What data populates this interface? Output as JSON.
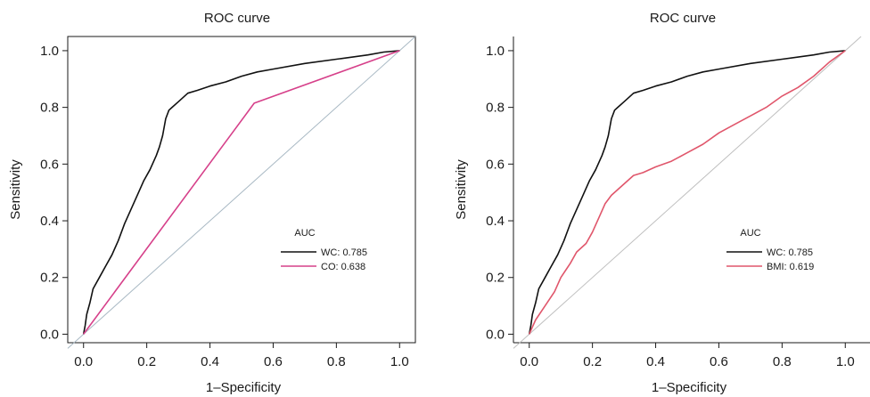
{
  "chart_data": [
    {
      "type": "line",
      "title": "ROC curve",
      "xlabel": "1–Specificity",
      "ylabel": "Sensitivity",
      "xlim": [
        -0.05,
        1.05
      ],
      "ylim": [
        -0.03,
        1.05
      ],
      "xticks": [
        "0.0",
        "0.2",
        "0.4",
        "0.6",
        "0.8",
        "1.0"
      ],
      "yticks": [
        "0.0",
        "0.2",
        "0.4",
        "0.6",
        "0.8",
        "1.0"
      ],
      "grid": false,
      "legend_title": "AUC",
      "legend_position": "bottom-right",
      "reference_line": {
        "x": [
          0,
          1
        ],
        "y": [
          0,
          1
        ],
        "color": "#a9b9c4"
      },
      "series": [
        {
          "name": "WC: 0.785",
          "color": "#111111",
          "x": [
            0,
            0.005,
            0.01,
            0.02,
            0.03,
            0.05,
            0.07,
            0.09,
            0.11,
            0.13,
            0.15,
            0.17,
            0.19,
            0.21,
            0.23,
            0.24,
            0.25,
            0.26,
            0.27,
            0.28,
            0.3,
            0.33,
            0.36,
            0.4,
            0.45,
            0.5,
            0.55,
            0.6,
            0.7,
            0.8,
            0.9,
            0.95,
            1.0
          ],
          "y": [
            0,
            0.03,
            0.07,
            0.11,
            0.16,
            0.2,
            0.24,
            0.28,
            0.33,
            0.39,
            0.44,
            0.49,
            0.54,
            0.58,
            0.63,
            0.66,
            0.7,
            0.76,
            0.79,
            0.8,
            0.82,
            0.85,
            0.86,
            0.875,
            0.89,
            0.91,
            0.925,
            0.935,
            0.955,
            0.97,
            0.985,
            0.995,
            1.0
          ]
        },
        {
          "name": "CO: 0.638",
          "color": "#d6408a",
          "x": [
            0,
            0.54,
            1.0
          ],
          "y": [
            0,
            0.815,
            1.0
          ]
        }
      ]
    },
    {
      "type": "line",
      "title": "ROC curve",
      "xlabel": "1–Specificity",
      "ylabel": "Sensitivity",
      "xlim": [
        -0.05,
        1.05
      ],
      "ylim": [
        -0.03,
        1.05
      ],
      "xticks": [
        "0.0",
        "0.2",
        "0.4",
        "0.6",
        "0.8",
        "1.0"
      ],
      "yticks": [
        "0.0",
        "0.2",
        "0.4",
        "0.6",
        "0.8",
        "1.0"
      ],
      "grid": false,
      "legend_title": "AUC",
      "legend_position": "bottom-right",
      "reference_line": {
        "x": [
          0,
          1
        ],
        "y": [
          0,
          1
        ],
        "color": "#bfbfbf"
      },
      "series": [
        {
          "name": "WC: 0.785",
          "color": "#111111",
          "x": [
            0,
            0.005,
            0.01,
            0.02,
            0.03,
            0.05,
            0.07,
            0.09,
            0.11,
            0.13,
            0.15,
            0.17,
            0.19,
            0.21,
            0.23,
            0.24,
            0.25,
            0.26,
            0.27,
            0.28,
            0.3,
            0.33,
            0.36,
            0.4,
            0.45,
            0.5,
            0.55,
            0.6,
            0.7,
            0.8,
            0.9,
            0.95,
            1.0
          ],
          "y": [
            0,
            0.03,
            0.07,
            0.11,
            0.16,
            0.2,
            0.24,
            0.28,
            0.33,
            0.39,
            0.44,
            0.49,
            0.54,
            0.58,
            0.63,
            0.66,
            0.7,
            0.76,
            0.79,
            0.8,
            0.82,
            0.85,
            0.86,
            0.875,
            0.89,
            0.91,
            0.925,
            0.935,
            0.955,
            0.97,
            0.985,
            0.995,
            1.0
          ]
        },
        {
          "name": "BMI: 0.619",
          "color": "#e0566b",
          "x": [
            0,
            0.02,
            0.05,
            0.08,
            0.1,
            0.13,
            0.15,
            0.18,
            0.2,
            0.22,
            0.24,
            0.26,
            0.28,
            0.3,
            0.33,
            0.36,
            0.4,
            0.45,
            0.5,
            0.55,
            0.6,
            0.65,
            0.7,
            0.75,
            0.8,
            0.85,
            0.9,
            0.95,
            1.0
          ],
          "y": [
            0,
            0.05,
            0.1,
            0.15,
            0.2,
            0.25,
            0.29,
            0.32,
            0.36,
            0.41,
            0.46,
            0.49,
            0.51,
            0.53,
            0.56,
            0.57,
            0.59,
            0.61,
            0.64,
            0.67,
            0.71,
            0.74,
            0.77,
            0.8,
            0.84,
            0.87,
            0.91,
            0.96,
            1.0
          ]
        }
      ]
    }
  ]
}
